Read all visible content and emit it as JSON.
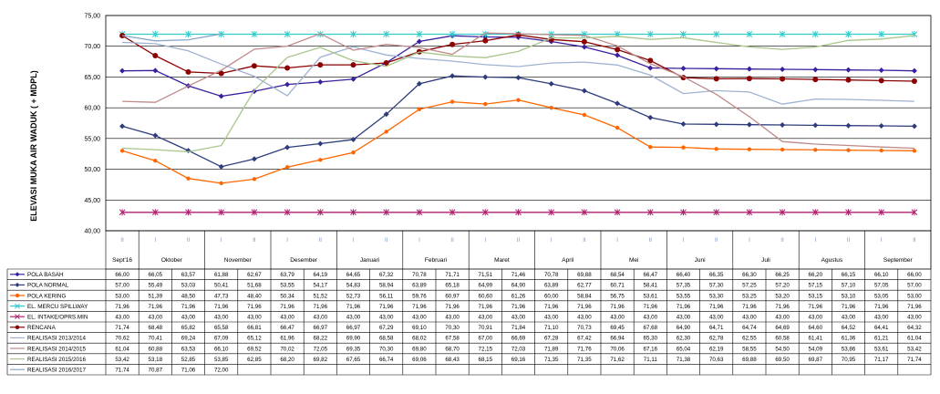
{
  "chart_data": {
    "type": "line",
    "ylabel": "ELEVASI MUKA AIR WADUK ( + MDPL)",
    "ylim": [
      40,
      75
    ],
    "ytick_labels": [
      "40,00",
      "45,00",
      "50,00",
      "55,00",
      "60,00",
      "65,00",
      "70,00",
      "75,00"
    ],
    "grid": true,
    "legend": "table-below",
    "months": [
      {
        "label": "Sept'16",
        "span": [
          0,
          0
        ]
      },
      {
        "label": "Oktober",
        "span": [
          1,
          2
        ]
      },
      {
        "label": "November",
        "span": [
          3,
          4
        ]
      },
      {
        "label": "Desember",
        "span": [
          5,
          6
        ]
      },
      {
        "label": "Januari",
        "span": [
          7,
          8
        ]
      },
      {
        "label": "Februari",
        "span": [
          9,
          10
        ]
      },
      {
        "label": "Maret",
        "span": [
          11,
          12
        ]
      },
      {
        "label": "April",
        "span": [
          13,
          14
        ]
      },
      {
        "label": "Mei",
        "span": [
          15,
          16
        ]
      },
      {
        "label": "Juni",
        "span": [
          17,
          18
        ]
      },
      {
        "label": "Juli",
        "span": [
          19,
          20
        ]
      },
      {
        "label": "Agustus",
        "span": [
          21,
          22
        ]
      },
      {
        "label": "September",
        "span": [
          23,
          24
        ]
      }
    ],
    "period_labels": [
      "II",
      "I",
      "II",
      "I",
      "II",
      "I",
      "II",
      "I",
      "II",
      "I",
      "II",
      "I",
      "II",
      "I",
      "II",
      "I",
      "II",
      "I",
      "II",
      "I",
      "II",
      "I",
      "II",
      "I",
      "II"
    ],
    "series": [
      {
        "name": "POLA BASAH",
        "color": "#3a1f9e",
        "marker": "diamond",
        "values": [
          66.0,
          66.05,
          63.57,
          61.88,
          62.67,
          63.79,
          64.19,
          64.65,
          67.32,
          70.78,
          71.71,
          71.51,
          71.46,
          70.78,
          69.88,
          68.54,
          66.47,
          66.4,
          66.35,
          66.3,
          66.25,
          66.2,
          66.15,
          66.1,
          66.0
        ],
        "labels": [
          "66,00",
          "66,05",
          "63,57",
          "61,88",
          "62,67",
          "63,79",
          "64,19",
          "64,65",
          "67,32",
          "70,78",
          "71,71",
          "71,51",
          "71,46",
          "70,78",
          "69,88",
          "68,54",
          "66,47",
          "66,40",
          "66,35",
          "66,30",
          "66,25",
          "66,20",
          "66,15",
          "66,10",
          "66,00"
        ]
      },
      {
        "name": "POLA NORMAL",
        "color": "#2e3c7c",
        "marker": "diamond",
        "values": [
          57.0,
          55.49,
          53.03,
          50.41,
          51.68,
          53.55,
          54.17,
          54.83,
          58.94,
          63.89,
          65.18,
          64.99,
          64.9,
          63.89,
          62.77,
          60.71,
          58.41,
          57.35,
          57.3,
          57.25,
          57.2,
          57.15,
          57.1,
          57.05,
          57.0
        ],
        "labels": [
          "57,00",
          "55,49",
          "53,03",
          "50,41",
          "51,68",
          "53,55",
          "54,17",
          "54,83",
          "58,94",
          "63,89",
          "65,18",
          "64,99",
          "64,90",
          "63,89",
          "62,77",
          "60,71",
          "58,41",
          "57,35",
          "57,30",
          "57,25",
          "57,20",
          "57,15",
          "57,10",
          "57,05",
          "57,00"
        ]
      },
      {
        "name": "POLA KERING",
        "color": "#ff6600",
        "marker": "circle",
        "values": [
          53.0,
          51.39,
          48.5,
          47.73,
          48.4,
          50.34,
          51.52,
          52.73,
          56.11,
          59.76,
          60.97,
          60.6,
          61.26,
          60.0,
          58.84,
          56.75,
          53.61,
          53.55,
          53.3,
          53.25,
          53.2,
          53.15,
          53.1,
          53.05,
          53.0
        ],
        "labels": [
          "53,00",
          "51,39",
          "48,50",
          "47,73",
          "48,40",
          "50,34",
          "51,52",
          "52,73",
          "56,11",
          "59,76",
          "60,97",
          "60,60",
          "61,26",
          "60,00",
          "58,84",
          "56,75",
          "53,61",
          "53,55",
          "53,30",
          "53,25",
          "53,20",
          "53,15",
          "53,10",
          "53,05",
          "53,00"
        ]
      },
      {
        "name": "EL. MERCU SPILLWAY",
        "color": "#33cccc",
        "marker": "star",
        "values": [
          71.96,
          71.96,
          71.96,
          71.96,
          71.96,
          71.96,
          71.96,
          71.96,
          71.96,
          71.96,
          71.96,
          71.96,
          71.96,
          71.96,
          71.96,
          71.96,
          71.96,
          71.96,
          71.96,
          71.96,
          71.96,
          71.96,
          71.96,
          71.96,
          71.96
        ],
        "labels": [
          "71,96",
          "71,96",
          "71,96",
          "71,96",
          "71,96",
          "71,96",
          "71,96",
          "71,96",
          "71,96",
          "71,96",
          "71,96",
          "71,96",
          "71,96",
          "71,96",
          "71,96",
          "71,96",
          "71,96",
          "71,96",
          "71,96",
          "71,96",
          "71,96",
          "71,96",
          "71,96",
          "71,96",
          "71,96"
        ]
      },
      {
        "name": "EL. INTAKE/OPRS.MIN",
        "color": "#b0206e",
        "marker": "x",
        "values": [
          43,
          43,
          43,
          43,
          43,
          43,
          43,
          43,
          43,
          43,
          43,
          43,
          43,
          43,
          43,
          43,
          43,
          43,
          43,
          43,
          43,
          43,
          43,
          43,
          43
        ],
        "labels": [
          "43,00",
          "43,00",
          "43,00",
          "43,00",
          "43,00",
          "43,00",
          "43,00",
          "43,00",
          "43,00",
          "43,00",
          "43,00",
          "43,00",
          "43,00",
          "43,00",
          "43,00",
          "43,00",
          "43,00",
          "43,00",
          "43,00",
          "43,00",
          "43,00",
          "43,00",
          "43,00",
          "43,00",
          "43,00"
        ]
      },
      {
        "name": "RENCANA",
        "color": "#8b0000",
        "marker": "dot",
        "values": [
          71.74,
          68.48,
          65.82,
          65.58,
          66.81,
          66.47,
          66.97,
          66.97,
          67.29,
          69.1,
          70.3,
          70.91,
          71.84,
          71.1,
          70.73,
          69.45,
          67.68,
          64.9,
          64.71,
          64.74,
          64.69,
          64.6,
          64.52,
          64.41,
          64.32
        ],
        "labels": [
          "71,74",
          "68,48",
          "65,82",
          "65,58",
          "66,81",
          "66,47",
          "66,97",
          "66,97",
          "67,29",
          "69,10",
          "70,30",
          "70,91",
          "71,84",
          "71,10",
          "70,73",
          "69,45",
          "67,68",
          "64,90",
          "64,71",
          "64,74",
          "64,69",
          "64,60",
          "64,52",
          "64,41",
          "64,32"
        ]
      },
      {
        "name": "REALISASI 2013/2014",
        "color": "#9fb2d2",
        "marker": "none",
        "values": [
          70.62,
          70.41,
          69.24,
          67.09,
          65.12,
          61.96,
          68.22,
          69.9,
          68.58,
          68.02,
          67.58,
          67.0,
          66.69,
          67.28,
          67.42,
          66.94,
          65.3,
          62.3,
          62.78,
          62.55,
          60.58,
          61.41,
          61.36,
          61.21,
          61.04
        ],
        "labels": [
          "70,62",
          "70,41",
          "69,24",
          "67,09",
          "65,12",
          "61,96",
          "68,22",
          "69,90",
          "68,58",
          "68,02",
          "67,58",
          "67,00",
          "66,69",
          "67,28",
          "67,42",
          "66,94",
          "65,30",
          "62,30",
          "62,78",
          "62,55",
          "60,58",
          "61,41",
          "61,36",
          "61,21",
          "61,04"
        ]
      },
      {
        "name": "REALISASI 2014/2015",
        "color": "#c08a8a",
        "marker": "none",
        "values": [
          61.04,
          60.88,
          63.53,
          66.1,
          69.52,
          70.02,
          72.05,
          69.35,
          70.3,
          69.8,
          68.7,
          72.15,
          72.03,
          71.89,
          71.76,
          70.06,
          67.16,
          65.04,
          62.19,
          58.55,
          54.5,
          54.09,
          53.86,
          53.61,
          53.42
        ],
        "labels": [
          "61,04",
          "60,88",
          "63,53",
          "66,10",
          "69,52",
          "70,02",
          "72,05",
          "69,35",
          "70,30",
          "69,80",
          "68,70",
          "72,15",
          "72,03",
          "71,89",
          "71,76",
          "70,06",
          "67,16",
          "65,04",
          "62,19",
          "58,55",
          "54,50",
          "54,09",
          "53,86",
          "53,61",
          "53,42"
        ]
      },
      {
        "name": "REALISASI 2015/2016",
        "color": "#a8c58a",
        "marker": "none",
        "values": [
          53.42,
          53.18,
          52.85,
          53.85,
          62.85,
          68.2,
          69.82,
          67.65,
          66.74,
          69.06,
          68.43,
          68.15,
          69.16,
          71.35,
          71.35,
          71.62,
          71.11,
          71.38,
          70.63,
          69.88,
          69.5,
          69.87,
          70.95,
          71.17,
          71.74
        ],
        "labels": [
          "53,42",
          "53,18",
          "52,85",
          "53,85",
          "62,85",
          "68,20",
          "69,82",
          "67,65",
          "66,74",
          "69,06",
          "68,43",
          "68,15",
          "69,16",
          "71,35",
          "71,35",
          "71,62",
          "71,11",
          "71,38",
          "70,63",
          "69,88",
          "69,50",
          "69,87",
          "70,95",
          "71,17",
          "71,74"
        ]
      },
      {
        "name": "REALISASI 2016/2017",
        "color": "#8aa6c8",
        "marker": "none",
        "values": [
          71.74,
          70.87,
          71.06,
          72.0,
          null,
          null,
          null,
          null,
          null,
          null,
          null,
          null,
          null,
          null,
          null,
          null,
          null,
          null,
          null,
          null,
          null,
          null,
          null,
          null,
          null
        ],
        "labels": [
          "71,74",
          "70,87",
          "71,06",
          "72,00",
          "",
          "",
          "",
          "",
          "",
          "",
          "",
          "",
          "",
          "",
          "",
          "",
          "",
          "",
          "",
          "",
          "",
          "",
          "",
          "",
          ""
        ]
      }
    ]
  }
}
